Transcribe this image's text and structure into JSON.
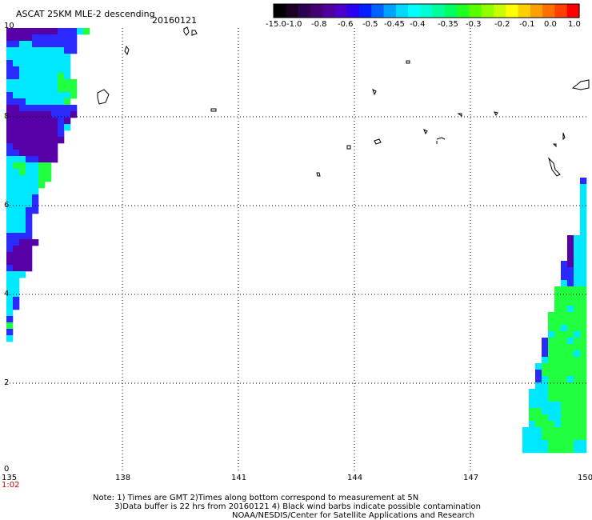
{
  "header": {
    "title": "ASCAT 25KM MLE-2 descending",
    "date": "20160121"
  },
  "legend": {
    "labels": [
      "-15.0",
      "-1.0",
      "-0.8",
      "-0.6",
      "-0.5",
      "-0.45",
      "-0.4",
      "-0.35",
      "-0.3",
      "-0.2",
      "-0.1",
      "0.0",
      "1.0"
    ],
    "colors": [
      "#000000",
      "#1a0022",
      "#2d0050",
      "#420070",
      "#52009b",
      "#4a00c8",
      "#2a00f0",
      "#0020ff",
      "#0060ff",
      "#00a0ff",
      "#00d8ff",
      "#00ffff",
      "#00ffd0",
      "#00ff98",
      "#00ff60",
      "#20ff20",
      "#58ff00",
      "#90ff00",
      "#c8ff00",
      "#ffff00",
      "#ffd000",
      "#ffa000",
      "#ff7000",
      "#ff4000",
      "#ff0000"
    ]
  },
  "axes": {
    "x_ticks": [
      "135",
      "138",
      "141",
      "144",
      "147",
      "150"
    ],
    "y_ticks": [
      "10",
      "8",
      "6",
      "4",
      "2",
      "0"
    ],
    "time_label": "1:02"
  },
  "notes": {
    "line1": "Note: 1) Times are GMT 2)Times along bottom correspond to measurement at 5N",
    "line2": "3)Data buffer is 22 hrs from 20160121 4) Black wind barbs indicate possible contamination",
    "line3": "NOAA/NESDIS/Center for Satellite Applications and Research"
  },
  "colors": {
    "grid": "#000000",
    "purple": "#5800a8",
    "blue": "#2a2aff",
    "cyan": "#00e8ff",
    "green": "#20ff40",
    "time_label": "#cc0000"
  }
}
